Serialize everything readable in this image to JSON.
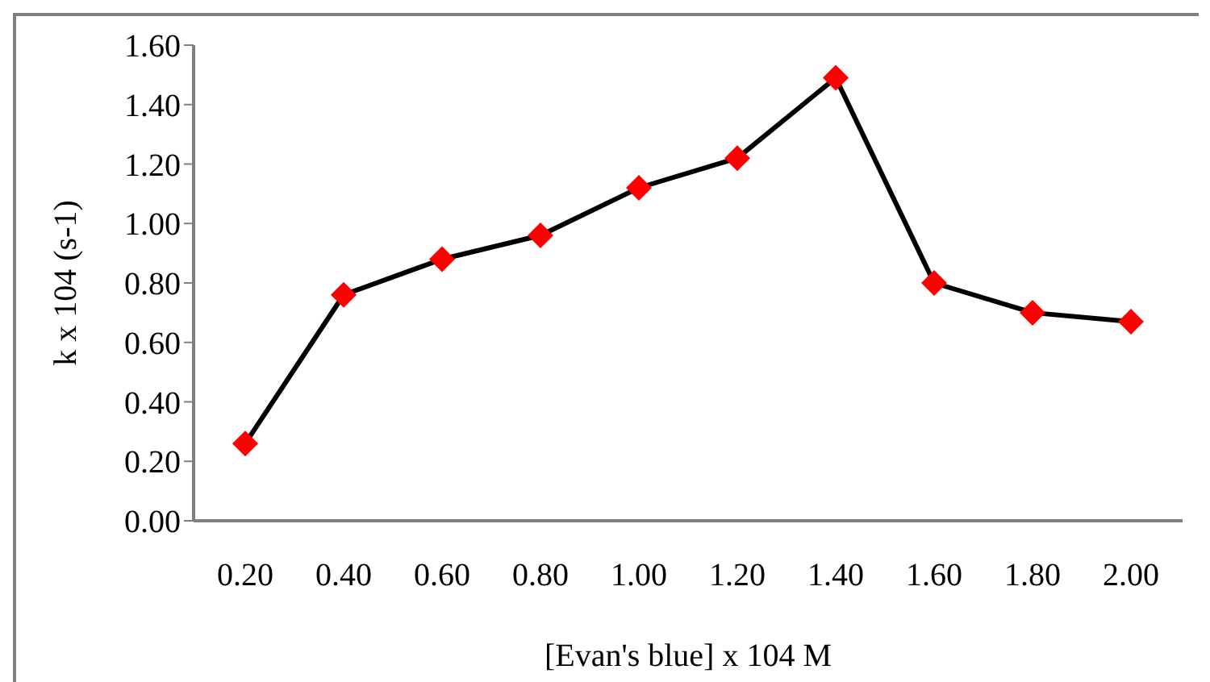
{
  "chart_data": {
    "type": "line",
    "xlabel": "[Evan's blue] x 104 M",
    "ylabel": "k x 104 (s-1)",
    "categories": [
      "0.20",
      "0.40",
      "0.60",
      "0.80",
      "1.00",
      "1.20",
      "1.40",
      "1.60",
      "1.80",
      "2.00"
    ],
    "series": [
      {
        "color": "#000000",
        "colors": [
          "#ff0000",
          "#ff0000",
          "#ff0000",
          "#ff0000",
          "#ff0000",
          "#ff0000",
          "#ff0000",
          "#ff0000",
          "#ff0000",
          "#ff0000"
        ],
        "values": [
          0.26,
          0.76,
          0.88,
          0.96,
          1.12,
          1.22,
          1.49,
          0.8,
          0.7,
          0.67
        ]
      }
    ],
    "ylim": [
      0,
      1.6
    ],
    "yticks": [
      {
        "value": 0,
        "label": "0.00"
      },
      {
        "value": 0.2,
        "label": "0.20"
      },
      {
        "value": 0.4,
        "label": "0.40"
      },
      {
        "value": 0.6,
        "label": "0.60"
      },
      {
        "value": 0.8,
        "label": "0.80"
      },
      {
        "value": 1.0,
        "label": "1.00"
      },
      {
        "value": 1.2,
        "label": "1.20"
      },
      {
        "value": 1.4,
        "label": "1.40"
      },
      {
        "value": 1.6,
        "label": "1.60"
      }
    ],
    "grid": false,
    "legend": false,
    "marker": "diamond",
    "line_style": "solid"
  }
}
